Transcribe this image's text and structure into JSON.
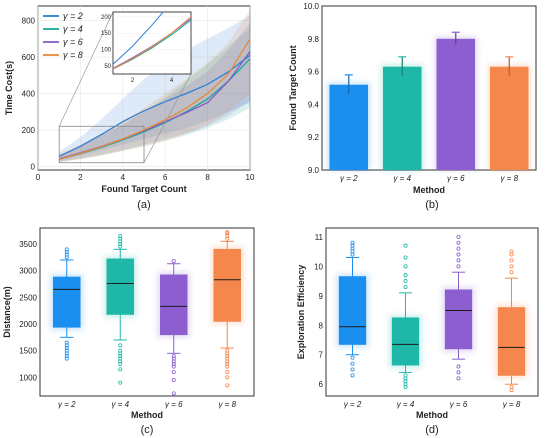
{
  "chart_data": [
    {
      "id": "a",
      "type": "line",
      "caption": "(a)",
      "xlabel": "Found Target Count",
      "ylabel": "Time Cost(s)",
      "xlim": [
        0,
        10
      ],
      "ylim": [
        -20,
        880
      ],
      "xticks": [
        "0",
        "2",
        "4",
        "6",
        "8",
        "10"
      ],
      "yticks": [
        "0",
        "200",
        "400",
        "600",
        "800"
      ],
      "legend": "top-left",
      "series": [
        {
          "name": "γ = 2",
          "color": "#2f7fd6",
          "x": [
            1,
            2,
            3,
            4,
            5,
            6,
            7,
            8,
            9,
            10
          ],
          "y": [
            55,
            110,
            175,
            245,
            305,
            355,
            400,
            450,
            520,
            610
          ],
          "lo": [
            30,
            60,
            90,
            120,
            150,
            180,
            210,
            250,
            300,
            350
          ],
          "hi": [
            80,
            160,
            260,
            370,
            480,
            560,
            640,
            700,
            760,
            830
          ]
        },
        {
          "name": "γ = 4",
          "color": "#1aa89a",
          "x": [
            1,
            2,
            3,
            4,
            5,
            6,
            7,
            8,
            9,
            10
          ],
          "y": [
            40,
            70,
            105,
            145,
            190,
            240,
            300,
            370,
            470,
            590
          ],
          "lo": [
            25,
            40,
            60,
            85,
            110,
            140,
            170,
            210,
            260,
            320
          ],
          "hi": [
            60,
            110,
            170,
            230,
            300,
            380,
            470,
            560,
            660,
            760
          ]
        },
        {
          "name": "γ = 6",
          "color": "#8a59c9",
          "x": [
            1,
            2,
            3,
            4,
            5,
            6,
            7,
            8,
            9,
            10
          ],
          "y": [
            42,
            75,
            110,
            150,
            195,
            245,
            295,
            350,
            470,
            630
          ],
          "lo": [
            25,
            45,
            65,
            90,
            120,
            150,
            180,
            220,
            280,
            360
          ],
          "hi": [
            60,
            110,
            170,
            230,
            300,
            370,
            440,
            520,
            640,
            790
          ]
        },
        {
          "name": "γ = 8",
          "color": "#e88b3a",
          "x": [
            1,
            2,
            3,
            4,
            5,
            6,
            7,
            8,
            9,
            10
          ],
          "y": [
            40,
            72,
            108,
            150,
            200,
            255,
            320,
            400,
            510,
            700
          ],
          "lo": [
            20,
            40,
            60,
            85,
            110,
            140,
            180,
            230,
            300,
            400
          ],
          "hi": [
            70,
            120,
            180,
            250,
            320,
            400,
            480,
            570,
            680,
            860
          ]
        }
      ],
      "inset": {
        "xlim": [
          1,
          5
        ],
        "ylim": [
          25,
          215
        ],
        "xticks": [
          "2",
          "4"
        ],
        "yticks": [
          "50",
          "100",
          "150",
          "200"
        ],
        "source_box": {
          "x": [
            1,
            5
          ],
          "y": [
            20,
            220
          ]
        }
      }
    },
    {
      "id": "b",
      "type": "bar",
      "caption": "(b)",
      "xlabel": "Method",
      "ylabel": "Found Target Count",
      "ylim": [
        9.0,
        10.0
      ],
      "yticks": [
        "9.0",
        "9.2",
        "9.4",
        "9.6",
        "9.8",
        "10.0"
      ],
      "categories": [
        "γ = 2",
        "γ = 4",
        "γ = 6",
        "γ = 8"
      ],
      "values": [
        9.52,
        9.63,
        9.8,
        9.63
      ],
      "errors": [
        0.06,
        0.06,
        0.04,
        0.06
      ],
      "colors": [
        "#1b8ff0",
        "#1fb8a8",
        "#8d5ed0",
        "#f5874d"
      ]
    },
    {
      "id": "c",
      "type": "box",
      "caption": "(c)",
      "xlabel": "Method",
      "ylabel": "Distance(m)",
      "ylim": [
        650,
        3800
      ],
      "yticks": [
        "1000",
        "1500",
        "2000",
        "2500",
        "3000",
        "3500"
      ],
      "categories": [
        "γ = 2",
        "γ = 4",
        "γ = 6",
        "γ = 8"
      ],
      "colors": [
        "#1b8ff0",
        "#1fb8a8",
        "#8d5ed0",
        "#f5874d"
      ],
      "boxes": [
        {
          "whislo": 1750,
          "q1": 1940,
          "med": 2650,
          "q3": 2880,
          "whishi": 3200,
          "fliers": [
            1350,
            1400,
            1450,
            1500,
            1550,
            1600,
            1650,
            3250,
            3300,
            3350,
            3400
          ]
        },
        {
          "whislo": 1700,
          "q1": 2180,
          "med": 2760,
          "q3": 3220,
          "whishi": 3400,
          "fliers": [
            900,
            1150,
            1250,
            1300,
            1350,
            1400,
            1450,
            1500,
            1600,
            3450,
            3500,
            3550,
            3600,
            3650
          ]
        },
        {
          "whislo": 1450,
          "q1": 1800,
          "med": 2330,
          "q3": 2920,
          "whishi": 3130,
          "fliers": [
            700,
            950,
            1100,
            1200,
            1250,
            1300,
            1350,
            1400,
            3180
          ]
        },
        {
          "whislo": 1550,
          "q1": 2050,
          "med": 2830,
          "q3": 3400,
          "whishi": 3550,
          "fliers": [
            850,
            1000,
            1100,
            1200,
            1250,
            1300,
            1350,
            1400,
            1450,
            1500,
            3600,
            3650,
            3700,
            3720
          ]
        }
      ]
    },
    {
      "id": "d",
      "type": "box",
      "caption": "(d)",
      "xlabel": "Method",
      "ylabel": "Exploration Efficiency",
      "ylim": [
        5.6,
        11.3
      ],
      "yticks": [
        "6",
        "7",
        "8",
        "9",
        "10",
        "11"
      ],
      "categories": [
        "γ = 2",
        "γ = 4",
        "γ = 6",
        "γ = 8"
      ],
      "colors": [
        "#1b8ff0",
        "#1fb8a8",
        "#8d5ed0",
        "#f5874d"
      ],
      "boxes": [
        {
          "whislo": 7.0,
          "q1": 7.35,
          "med": 7.95,
          "q3": 9.65,
          "whishi": 10.3,
          "fliers": [
            6.3,
            6.5,
            6.7,
            6.9,
            10.4,
            10.5,
            10.6,
            10.7,
            10.8
          ]
        },
        {
          "whislo": 6.4,
          "q1": 6.65,
          "med": 7.35,
          "q3": 8.25,
          "whishi": 9.1,
          "fliers": [
            5.9,
            6.0,
            6.1,
            6.2,
            6.3,
            9.3,
            9.5,
            9.7,
            10.0,
            10.3,
            10.7
          ]
        },
        {
          "whislo": 6.85,
          "q1": 7.2,
          "med": 8.5,
          "q3": 9.2,
          "whishi": 9.8,
          "fliers": [
            6.2,
            6.4,
            6.6,
            10.0,
            10.2,
            10.4,
            10.6,
            10.8,
            11.0
          ]
        },
        {
          "whislo": 6.0,
          "q1": 6.3,
          "med": 7.25,
          "q3": 8.6,
          "whishi": 9.6,
          "fliers": [
            5.8,
            5.9,
            9.8,
            10.0,
            10.2,
            10.4,
            10.5
          ]
        }
      ]
    }
  ]
}
